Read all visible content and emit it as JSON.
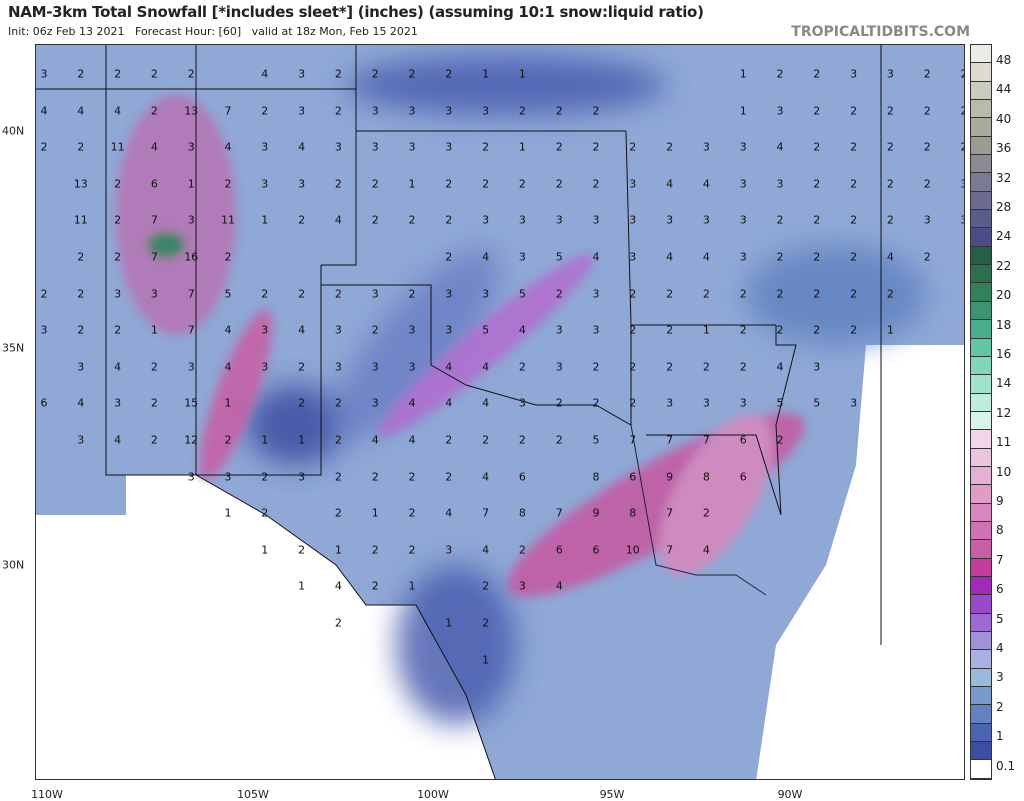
{
  "header": {
    "title": "NAM-3km Total Snowfall [*includes sleet*] (inches) (assuming 10:1 snow:liquid ratio)",
    "subtitle": "Init: 06z Feb 13 2021   Forecast Hour: [60]   valid at 18z Mon, Feb 15 2021",
    "brand": "TROPICALTIDBITS.COM"
  },
  "axes": {
    "lat_labels": [
      "40N",
      "35N",
      "30N"
    ],
    "lon_labels": [
      "110W",
      "105W",
      "100W",
      "95W",
      "90W"
    ]
  },
  "colorbar": {
    "labels": [
      "48",
      "44",
      "40",
      "36",
      "32",
      "28",
      "24",
      "22",
      "20",
      "18",
      "16",
      "14",
      "12",
      "11",
      "10",
      "9",
      "8",
      "7",
      "6",
      "5",
      "4",
      "3",
      "2",
      "1",
      "0.1"
    ],
    "colors": [
      "#ececE6",
      "#dedcd2",
      "#cbcbbf",
      "#babaab",
      "#a9a99d",
      "#9b9b92",
      "#8b8b92",
      "#7a7a92",
      "#6b6b8e",
      "#5c5c8a",
      "#4c4c86",
      "#245f46",
      "#2b6e50",
      "#33805d",
      "#3c9472",
      "#49ae8e",
      "#62c6a6",
      "#82d6bb",
      "#a2e3cc",
      "#bfecdc",
      "#daf4ec",
      "#f1d6e9",
      "#ecc4de",
      "#e5b0d3",
      "#de9cc7",
      "#d688bd",
      "#ce74b2",
      "#c660a6",
      "#c23e9a",
      "#a22abb",
      "#9a4ac9",
      "#9c6ad1",
      "#a191d9",
      "#a9b1e1",
      "#98b9dc",
      "#7a9acd",
      "#6282c1",
      "#4d65b1",
      "#3d4da1",
      "#ffffff"
    ]
  },
  "map": {
    "grid_values": [
      [
        3,
        2,
        2,
        2,
        2,
        null,
        4,
        3,
        2,
        2,
        2,
        2,
        1,
        1,
        null,
        null,
        null,
        null,
        null,
        1,
        2,
        2,
        3,
        3,
        2,
        2
      ],
      [
        4,
        4,
        4,
        2,
        13,
        7,
        2,
        3,
        2,
        3,
        3,
        3,
        3,
        2,
        2,
        2,
        null,
        null,
        null,
        1,
        3,
        2,
        2,
        2,
        2,
        2
      ],
      [
        2,
        2,
        11,
        4,
        3,
        4,
        3,
        4,
        3,
        3,
        3,
        3,
        2,
        1,
        2,
        2,
        2,
        2,
        3,
        3,
        4,
        2,
        2,
        2,
        2,
        2
      ],
      [
        null,
        13,
        2,
        6,
        1,
        2,
        3,
        3,
        2,
        2,
        1,
        2,
        2,
        2,
        2,
        2,
        3,
        4,
        4,
        3,
        3,
        2,
        2,
        2,
        2,
        3
      ],
      [
        null,
        11,
        2,
        7,
        3,
        11,
        1,
        2,
        4,
        2,
        2,
        2,
        3,
        3,
        3,
        3,
        3,
        3,
        3,
        3,
        2,
        2,
        2,
        2,
        3,
        3
      ],
      [
        null,
        2,
        2,
        7,
        16,
        2,
        null,
        null,
        null,
        null,
        null,
        2,
        4,
        3,
        5,
        4,
        3,
        4,
        4,
        3,
        2,
        2,
        2,
        4,
        2,
        null
      ],
      [
        2,
        2,
        3,
        3,
        7,
        5,
        2,
        2,
        2,
        3,
        2,
        3,
        3,
        5,
        2,
        3,
        2,
        2,
        2,
        2,
        2,
        2,
        2,
        2,
        null,
        null
      ],
      [
        3,
        2,
        2,
        1,
        7,
        4,
        3,
        4,
        3,
        2,
        3,
        3,
        5,
        4,
        3,
        3,
        2,
        2,
        1,
        2,
        2,
        2,
        2,
        1,
        null,
        null
      ],
      [
        null,
        3,
        4,
        2,
        3,
        4,
        3,
        2,
        3,
        3,
        3,
        4,
        4,
        2,
        3,
        2,
        2,
        2,
        2,
        2,
        4,
        3,
        null,
        null,
        null,
        null
      ],
      [
        6,
        4,
        3,
        2,
        15,
        1,
        null,
        2,
        2,
        3,
        4,
        4,
        4,
        3,
        2,
        2,
        2,
        3,
        3,
        3,
        5,
        5,
        3,
        null,
        null,
        null
      ],
      [
        null,
        3,
        4,
        2,
        12,
        2,
        1,
        1,
        2,
        4,
        4,
        2,
        2,
        2,
        2,
        5,
        7,
        7,
        7,
        6,
        2,
        null,
        null,
        null,
        null,
        null
      ],
      [
        null,
        null,
        null,
        null,
        3,
        3,
        2,
        3,
        2,
        2,
        2,
        2,
        4,
        6,
        null,
        8,
        6,
        9,
        8,
        6,
        null,
        null,
        null,
        null,
        null,
        null
      ],
      [
        null,
        null,
        null,
        null,
        null,
        1,
        2,
        null,
        2,
        1,
        2,
        4,
        7,
        8,
        7,
        9,
        8,
        7,
        2,
        null,
        null,
        null,
        null,
        null,
        null,
        null
      ],
      [
        null,
        null,
        null,
        null,
        null,
        null,
        1,
        2,
        1,
        2,
        2,
        3,
        4,
        2,
        6,
        6,
        10,
        7,
        4,
        null,
        null,
        null,
        null,
        null,
        null,
        null
      ],
      [
        null,
        null,
        null,
        null,
        null,
        null,
        null,
        1,
        4,
        2,
        1,
        null,
        2,
        3,
        4,
        null,
        null,
        null,
        null,
        null,
        null,
        null,
        null,
        null,
        null,
        null
      ],
      [
        null,
        null,
        null,
        null,
        null,
        null,
        null,
        null,
        2,
        null,
        null,
        1,
        2,
        null,
        null,
        null,
        null,
        null,
        null,
        null,
        null,
        null,
        null,
        null,
        null,
        null
      ],
      [
        null,
        null,
        null,
        null,
        null,
        null,
        null,
        null,
        null,
        null,
        null,
        null,
        1,
        null,
        null,
        null,
        null,
        null,
        null,
        null,
        null,
        null,
        null,
        null,
        null,
        null
      ]
    ]
  }
}
